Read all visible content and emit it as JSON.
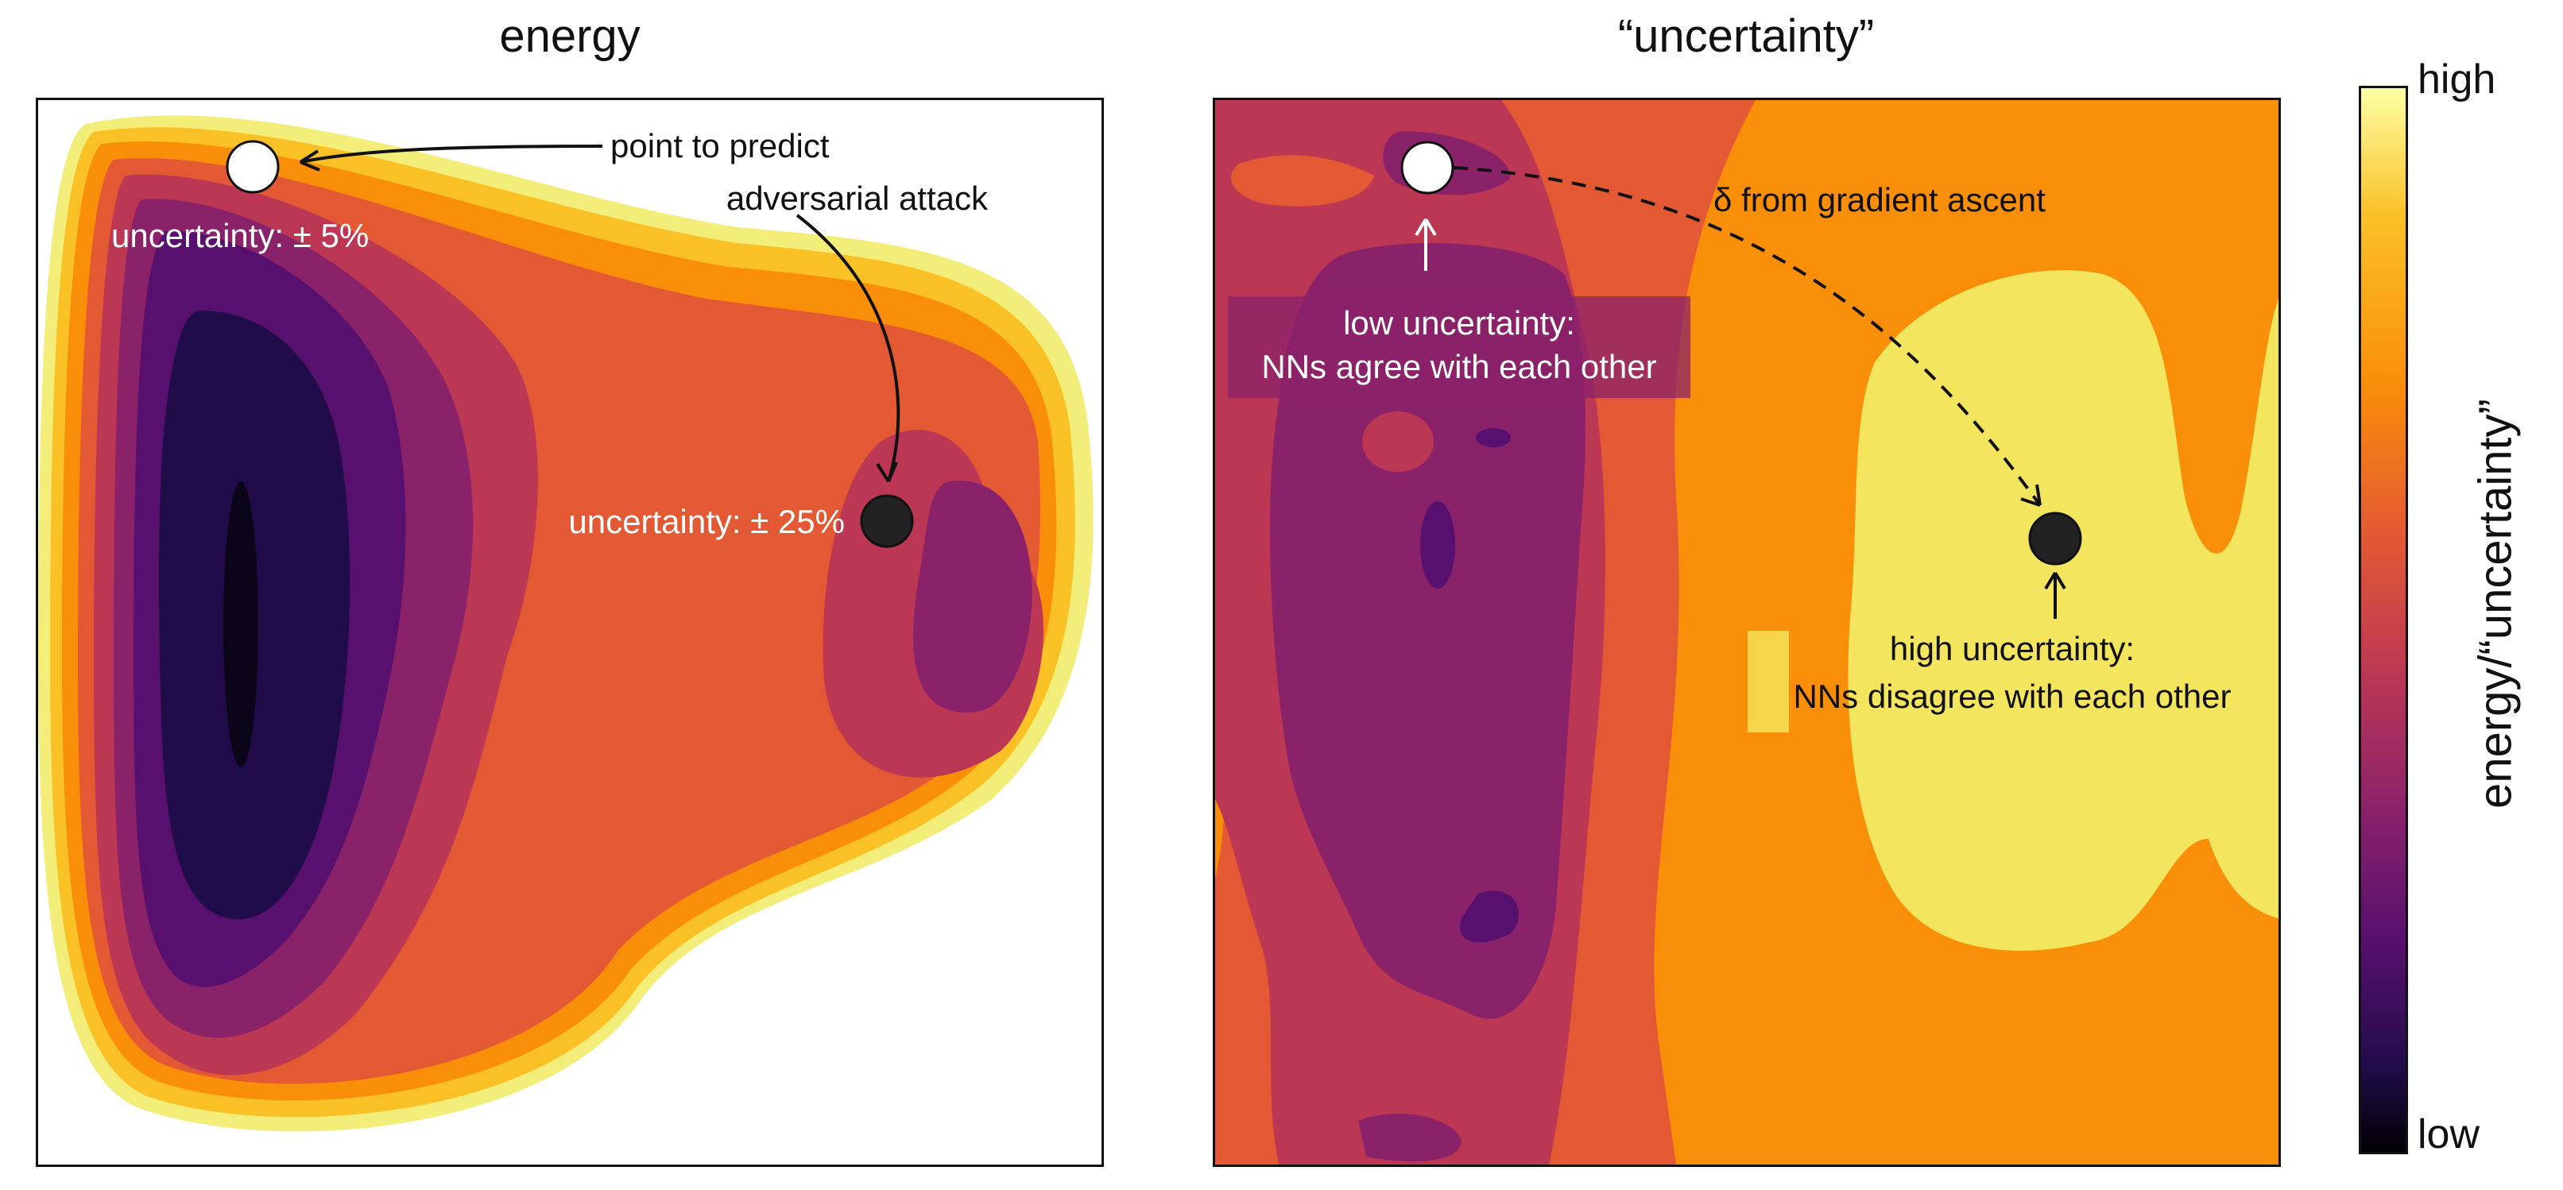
{
  "titles": {
    "left": "energy",
    "right": "“uncertainty”"
  },
  "left_panel": {
    "point_to_predict": "point to predict",
    "adversarial_attack": "adversarial attack",
    "uncertainty_low": "uncertainty: ± 5%",
    "uncertainty_high": "uncertainty: ± 25%"
  },
  "right_panel": {
    "gradient_label": "δ from gradient ascent",
    "low_uncertainty": [
      "low uncertainty:",
      "NNs agree with each other"
    ],
    "high_uncertainty": [
      "high uncertainty:",
      "NNs disagree with each other"
    ]
  },
  "colorbar": {
    "high": "high",
    "low": "low",
    "label": "energy/“uncertainty”",
    "colormap": [
      "#000004",
      "#210c4a",
      "#57106e",
      "#8a226a",
      "#bc3754",
      "#e35933",
      "#f98e09",
      "#fac127",
      "#f3e55d",
      "#fcffa4"
    ]
  },
  "colors": {
    "point_white": "#ffffff",
    "point_dark": "#222222",
    "text_on_plot": "#ffffff"
  }
}
